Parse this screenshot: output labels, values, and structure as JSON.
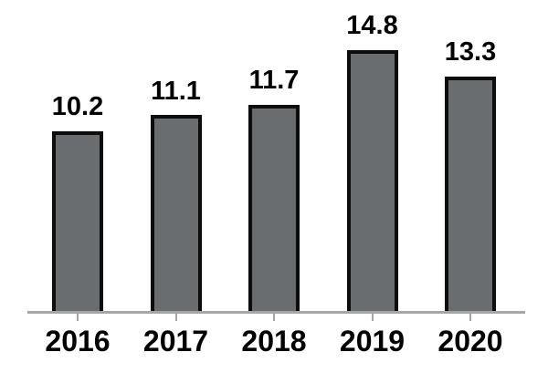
{
  "chart_data": {
    "type": "bar",
    "title": "",
    "xlabel": "",
    "ylabel": "",
    "categories": [
      "2016",
      "2017",
      "2018",
      "2019",
      "2020"
    ],
    "values": [
      10.2,
      11.1,
      11.7,
      14.8,
      13.3
    ],
    "value_labels": [
      "10.2",
      "11.1",
      "11.7",
      "14.8",
      "13.3"
    ],
    "ylim": [
      0,
      15.5
    ],
    "grid": false,
    "legend": false,
    "y_axis_visible": false,
    "bar_fill_color": "#6A6D70",
    "bar_edge_color": "#0D0D0D",
    "axis_line_color": "#A6A6A6",
    "tick_color": "#A6A6A6",
    "text_color": "#000000",
    "background_color": "#FFFFFF"
  }
}
